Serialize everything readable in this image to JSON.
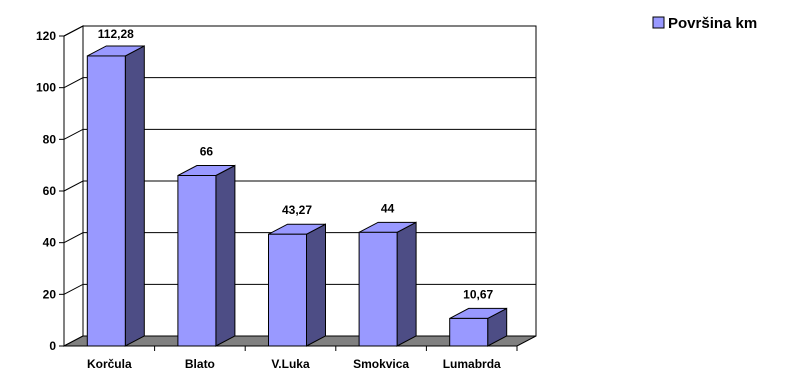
{
  "chart_data": {
    "type": "bar",
    "three_d": true,
    "categories": [
      "Korčula",
      "Blato",
      "V.Luka",
      "Smokvica",
      "Lumabrda"
    ],
    "series": [
      {
        "name": "Površina km",
        "values": [
          112.28,
          66,
          43.27,
          44,
          10.67
        ]
      }
    ],
    "data_labels": [
      "112,28",
      "66",
      "43,27",
      "44",
      "10,67"
    ],
    "yticks": [
      0,
      20,
      40,
      60,
      80,
      100,
      120
    ],
    "ylim": [
      0,
      120
    ],
    "grid": true,
    "legend_position": "top-right",
    "colors": {
      "bar_front": "#9999ff",
      "bar_side": "#4d4d85",
      "bar_top": "#9999ff",
      "floor": "#808080",
      "wall": "#ffffff",
      "axis": "#000000"
    }
  }
}
